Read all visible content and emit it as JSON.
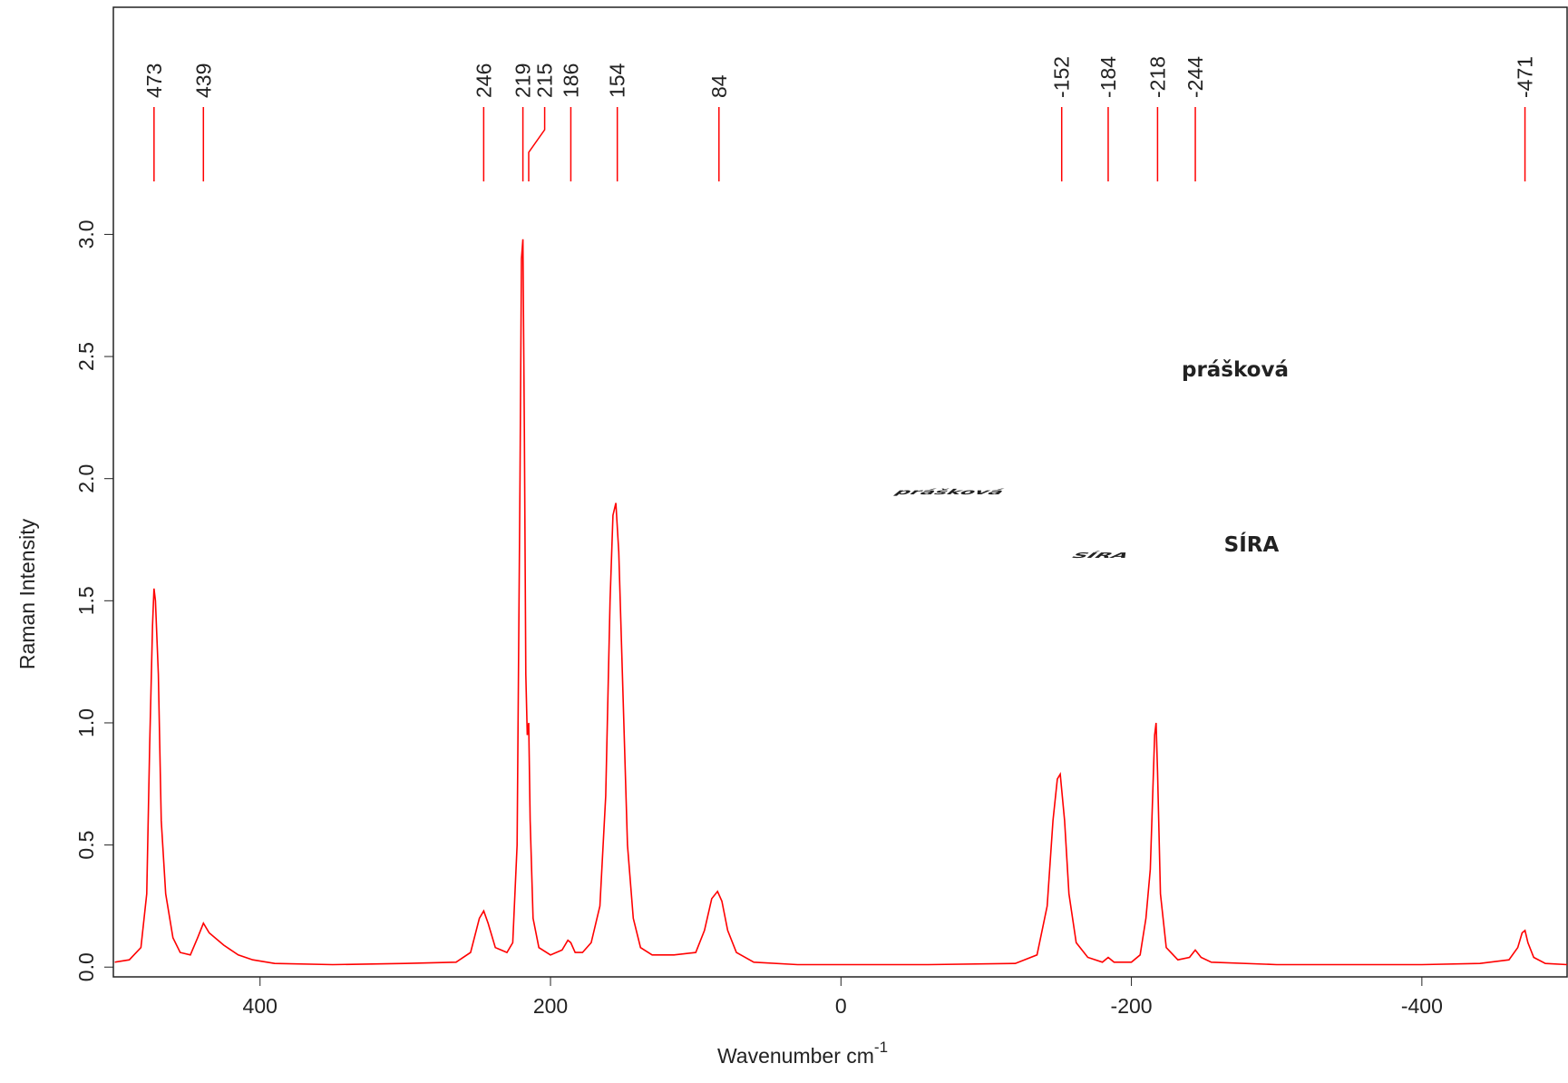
{
  "chart_data": {
    "type": "line",
    "x_label": "Wavenumber cm",
    "x_label_sup": "-1",
    "y_label": "Raman Intensity",
    "annotations": [
      "prášková",
      "SÍRA"
    ],
    "xlim": [
      501,
      -500
    ],
    "ylim": [
      -0.04,
      3.93
    ],
    "xticks": [
      400,
      200,
      0,
      -200,
      -400
    ],
    "yticks": [
      {
        "value": 0,
        "label": "0.0"
      },
      0.5,
      {
        "value": 1,
        "label": "1.0"
      },
      1.5,
      {
        "value": 2,
        "label": "2.0"
      },
      2.5,
      {
        "value": 3,
        "label": "3.0"
      }
    ],
    "peaks": [
      473,
      439,
      246,
      219,
      215,
      186,
      154,
      84,
      -152,
      -184,
      -218,
      -244,
      -471
    ],
    "peak_color": "#ff0000",
    "series": [
      {
        "color": "#ff0000",
        "x": [
          500,
          490,
          482,
          478,
          476,
          474,
          473,
          472,
          470,
          468,
          465,
          460,
          455,
          448,
          443,
          439,
          435,
          425,
          415,
          405,
          390,
          350,
          300,
          265,
          255,
          249,
          246,
          243,
          238,
          234,
          230,
          226,
          223,
          221,
          220,
          219,
          218,
          217,
          216,
          215,
          214,
          212,
          208,
          200,
          192,
          188,
          186,
          183,
          178,
          172,
          166,
          162,
          159,
          157,
          155,
          153,
          150,
          147,
          143,
          138,
          130,
          115,
          100,
          94,
          89,
          85,
          82,
          78,
          72,
          60,
          30,
          0,
          -60,
          -120,
          -135,
          -142,
          -146,
          -149,
          -151,
          -154,
          -157,
          -162,
          -170,
          -180,
          -184,
          -188,
          -200,
          -206,
          -210,
          -213,
          -216,
          -217,
          -218,
          -220,
          -224,
          -232,
          -240,
          -244,
          -248,
          -255,
          -300,
          -400,
          -440,
          -460,
          -466,
          -469,
          -471,
          -473,
          -477,
          -485,
          -500
        ],
        "values": [
          0.02,
          0.03,
          0.08,
          0.3,
          0.9,
          1.4,
          1.55,
          1.5,
          1.2,
          0.6,
          0.3,
          0.12,
          0.06,
          0.05,
          0.12,
          0.18,
          0.14,
          0.09,
          0.05,
          0.03,
          0.015,
          0.01,
          0.015,
          0.02,
          0.06,
          0.2,
          0.23,
          0.18,
          0.08,
          0.07,
          0.06,
          0.1,
          0.5,
          2.0,
          2.9,
          2.98,
          2.2,
          1.2,
          0.95,
          1.0,
          0.6,
          0.2,
          0.08,
          0.05,
          0.07,
          0.11,
          0.1,
          0.06,
          0.06,
          0.1,
          0.25,
          0.7,
          1.5,
          1.85,
          1.9,
          1.7,
          1.1,
          0.5,
          0.2,
          0.08,
          0.05,
          0.05,
          0.06,
          0.15,
          0.28,
          0.31,
          0.27,
          0.15,
          0.06,
          0.02,
          0.01,
          0.01,
          0.01,
          0.015,
          0.05,
          0.25,
          0.6,
          0.77,
          0.79,
          0.6,
          0.3,
          0.1,
          0.04,
          0.02,
          0.04,
          0.02,
          0.02,
          0.05,
          0.2,
          0.4,
          0.95,
          1.0,
          0.8,
          0.3,
          0.08,
          0.03,
          0.04,
          0.07,
          0.04,
          0.02,
          0.01,
          0.01,
          0.015,
          0.03,
          0.08,
          0.14,
          0.15,
          0.1,
          0.04,
          0.015,
          0.01
        ]
      }
    ]
  }
}
